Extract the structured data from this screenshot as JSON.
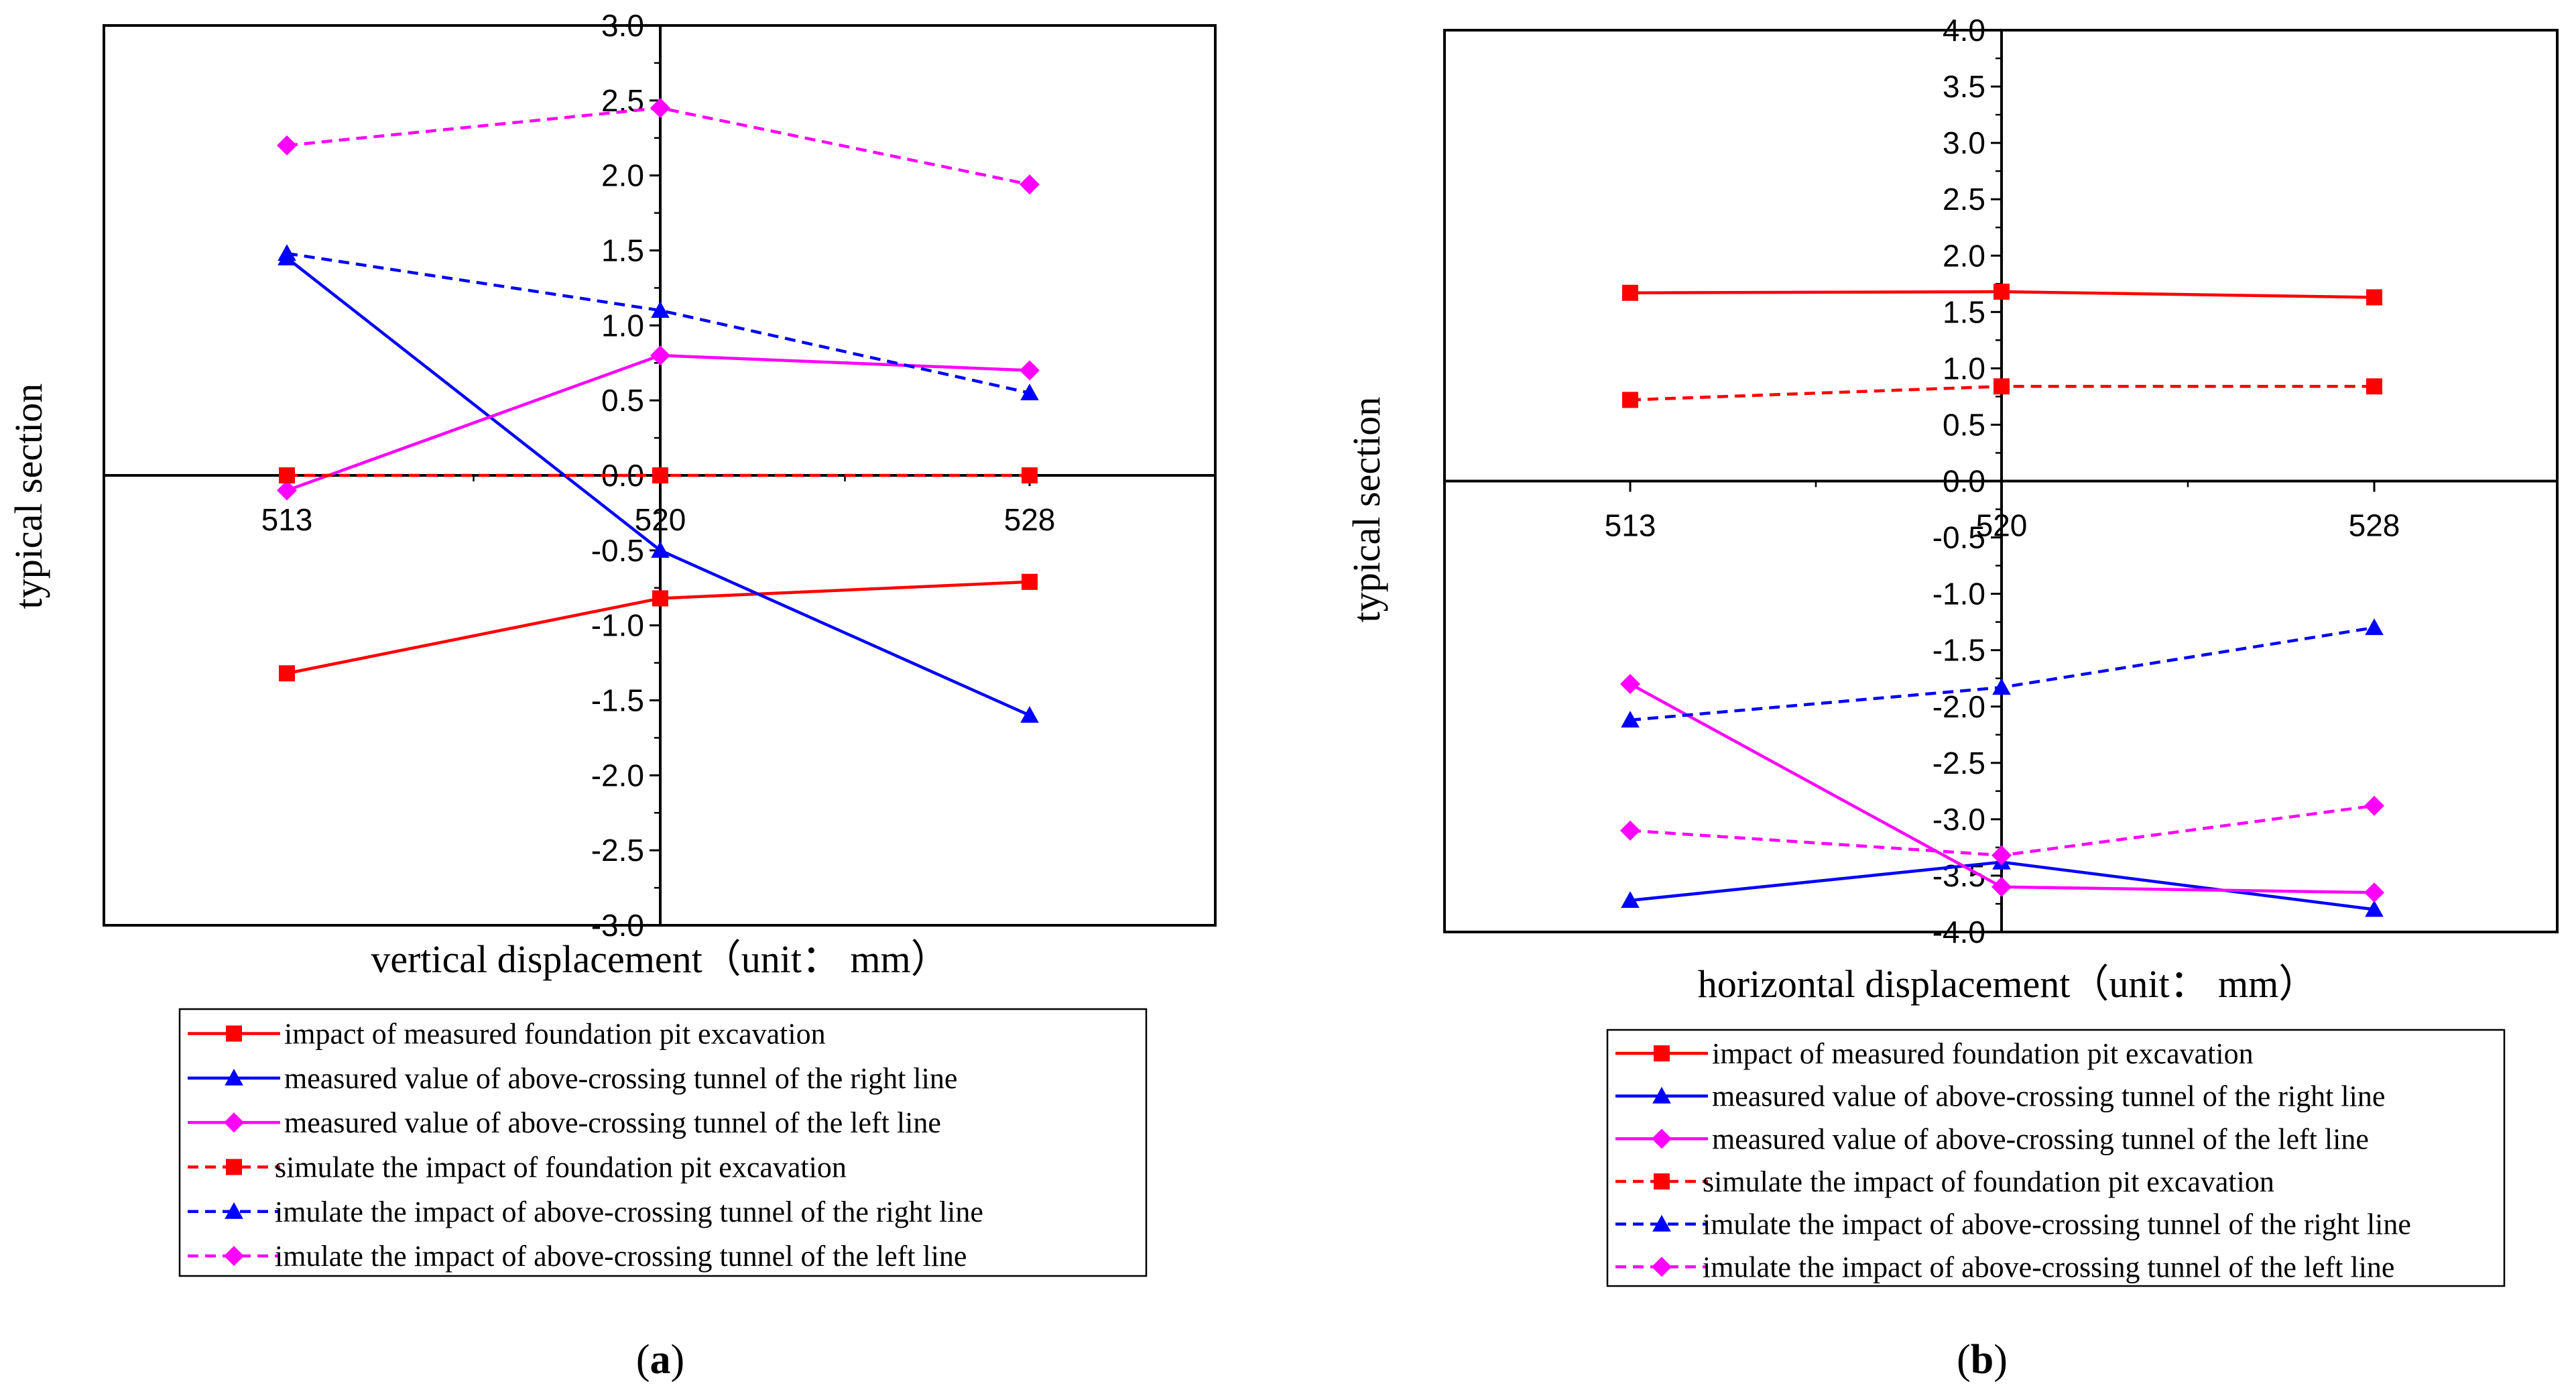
{
  "legend_entries": [
    "impact of measured foundation pit excavation",
    "measured value of above-crossing tunnel of the right line",
    "measured value of above-crossing tunnel of the left line",
    "simulate the impact of foundation pit excavation",
    "imulate the impact of above-crossing tunnel of the right line",
    "imulate the impact of above-crossing tunnel of the left line"
  ],
  "chart_data": [
    {
      "type": "line",
      "panel": "a",
      "caption_open": "(",
      "caption_letter": "a",
      "caption_close": ")",
      "xlabel": "vertical displacement（unit： mm）",
      "ylabel": "typical section",
      "categories": [
        "513",
        "520",
        "528"
      ],
      "ylim": [
        -3.0,
        3.0
      ],
      "yticks": [
        "3.0",
        "2.5",
        "2.0",
        "1.5",
        "1.0",
        "0.5",
        "0.0",
        "-0.5",
        "-1.0",
        "-1.5",
        "-2.0",
        "-2.5",
        "-3.0"
      ],
      "grid": false,
      "legend_position": "bottom",
      "series": [
        {
          "name": "impact of measured foundation pit excavation",
          "values": [
            -1.32,
            -0.82,
            -0.71
          ],
          "color": "#ff0000",
          "dash": "solid",
          "marker": "square"
        },
        {
          "name": "measured value of above-crossing tunnel of the right line",
          "values": [
            1.45,
            -0.5,
            -1.6
          ],
          "color": "#0000ff",
          "dash": "solid",
          "marker": "triangle"
        },
        {
          "name": "measured value of above-crossing tunnel of the left line",
          "values": [
            -0.1,
            0.8,
            0.7
          ],
          "color": "#ff00ff",
          "dash": "solid",
          "marker": "diamond"
        },
        {
          "name": "simulate the impact of foundation pit excavation",
          "values": [
            0.0,
            0.0,
            0.0
          ],
          "color": "#ff0000",
          "dash": "dashed",
          "marker": "square"
        },
        {
          "name": "imulate the impact of above-crossing tunnel of the right line",
          "values": [
            1.48,
            1.1,
            0.55
          ],
          "color": "#0000ff",
          "dash": "dashed",
          "marker": "triangle"
        },
        {
          "name": "imulate the impact of above-crossing tunnel of the left line",
          "values": [
            2.2,
            2.45,
            1.94
          ],
          "color": "#ff00ff",
          "dash": "dashed",
          "marker": "diamond"
        }
      ]
    },
    {
      "type": "line",
      "panel": "b",
      "caption_open": "(",
      "caption_letter": "b",
      "caption_close": ")",
      "xlabel": "horizontal displacement（unit： mm）",
      "ylabel": "typical section",
      "categories": [
        "513",
        "520",
        "528"
      ],
      "ylim": [
        -4.0,
        4.0
      ],
      "yticks": [
        "4.0",
        "3.5",
        "3.0",
        "2.5",
        "2.0",
        "1.5",
        "1.0",
        "0.5",
        "0.0",
        "-0.5",
        "-1.0",
        "-1.5",
        "-2.0",
        "-2.5",
        "-3.0",
        "-3.5",
        "-4.0"
      ],
      "grid": false,
      "legend_position": "bottom",
      "series": [
        {
          "name": "impact of measured foundation pit excavation",
          "values": [
            1.67,
            1.68,
            1.63
          ],
          "color": "#ff0000",
          "dash": "solid",
          "marker": "square"
        },
        {
          "name": "measured value of above-crossing tunnel of the right line",
          "values": [
            -3.72,
            -3.38,
            -3.8
          ],
          "color": "#0000ff",
          "dash": "solid",
          "marker": "triangle"
        },
        {
          "name": "measured value of above-crossing tunnel of the left line",
          "values": [
            -1.8,
            -3.6,
            -3.65
          ],
          "color": "#ff00ff",
          "dash": "solid",
          "marker": "diamond"
        },
        {
          "name": "simulate the impact of foundation pit excavation",
          "values": [
            0.72,
            0.84,
            0.84
          ],
          "color": "#ff0000",
          "dash": "dashed",
          "marker": "square"
        },
        {
          "name": "imulate the impact of above-crossing tunnel of the right line",
          "values": [
            -2.12,
            -1.83,
            -1.3
          ],
          "color": "#0000ff",
          "dash": "dashed",
          "marker": "triangle"
        },
        {
          "name": "imulate the impact of above-crossing tunnel of the left line",
          "values": [
            -3.1,
            -3.32,
            -2.88
          ],
          "color": "#ff00ff",
          "dash": "dashed",
          "marker": "diamond"
        }
      ]
    }
  ]
}
